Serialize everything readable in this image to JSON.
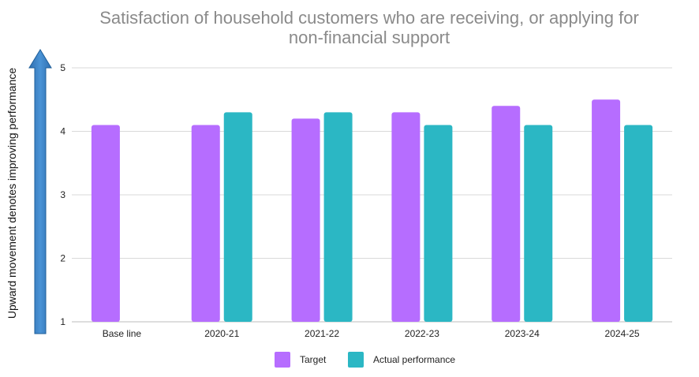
{
  "chart_data": {
    "type": "bar",
    "title_lines": [
      "Satisfaction of household customers who are receiving, or applying for",
      "non-financial support"
    ],
    "side_label": "Upward movement denotes improving performance",
    "categories": [
      "Base line",
      "2020-21",
      "2021-22",
      "2022-23",
      "2023-24",
      "2024-25"
    ],
    "series": [
      {
        "name": "Target",
        "color": "#b66dff",
        "values": [
          4.1,
          4.1,
          4.2,
          4.3,
          4.4,
          4.5
        ]
      },
      {
        "name": "Actual performance",
        "color": "#2bb7c4",
        "values": [
          null,
          4.3,
          4.3,
          4.1,
          4.1,
          4.1
        ]
      }
    ],
    "ylim": [
      1,
      5
    ],
    "yticks": [
      1,
      2,
      3,
      4,
      5
    ],
    "grid": true,
    "legend_position": "bottom-center",
    "arrow_color": "#3a7fc1"
  }
}
